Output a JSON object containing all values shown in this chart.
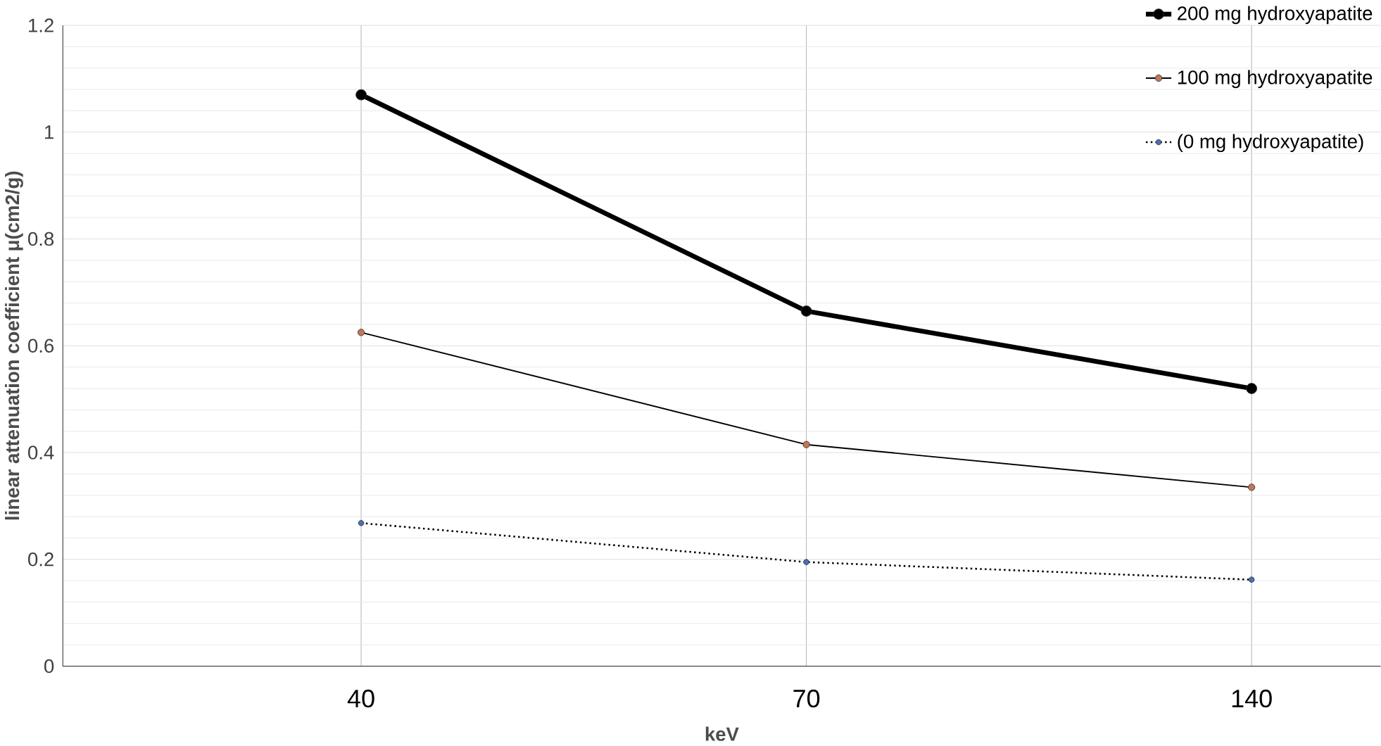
{
  "chart_data": {
    "type": "line",
    "xlabel": "keV",
    "ylabel": "linear attenuation coefficient μ(cm2/g)",
    "categories": [
      "40",
      "70",
      "140"
    ],
    "series": [
      {
        "name": "200 mg hydroxyapatite",
        "color": "#000000",
        "values": [
          1.07,
          0.665,
          0.52
        ],
        "line_style": "solid"
      },
      {
        "name": "100 mg hydroxyapatite",
        "color": "#c0785a",
        "values": [
          0.625,
          0.415,
          0.335
        ],
        "line_style": "solid"
      },
      {
        "name": "(0 mg hydroxyapatite)",
        "color": "#4a6fb5",
        "values": [
          0.268,
          0.195,
          0.162
        ],
        "line_style": "dotted"
      }
    ],
    "ylim": [
      0,
      1.2
    ],
    "yticks": [
      0,
      0.2,
      0.4,
      0.6,
      0.8,
      1,
      1.2
    ],
    "grid": true,
    "legend": "top right",
    "marker": "circle"
  }
}
